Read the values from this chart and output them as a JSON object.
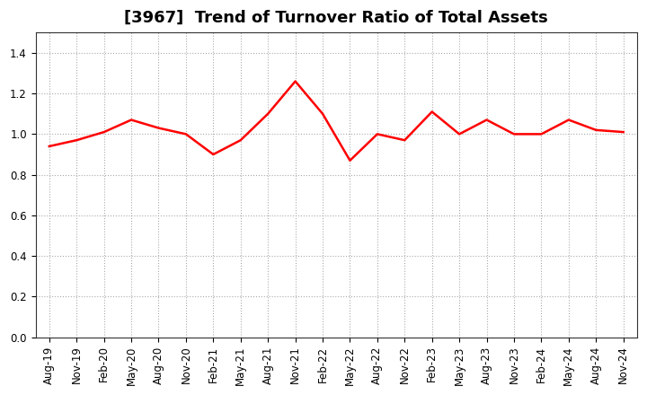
{
  "title": "[3967]  Trend of Turnover Ratio of Total Assets",
  "x_labels": [
    "Aug-19",
    "Nov-19",
    "Feb-20",
    "May-20",
    "Aug-20",
    "Nov-20",
    "Feb-21",
    "May-21",
    "Aug-21",
    "Nov-21",
    "Feb-22",
    "May-22",
    "Aug-22",
    "Nov-22",
    "Feb-23",
    "May-23",
    "Aug-23",
    "Nov-23",
    "Feb-24",
    "May-24",
    "Aug-24",
    "Nov-24"
  ],
  "values": [
    0.94,
    0.97,
    1.01,
    1.07,
    1.03,
    1.0,
    0.9,
    0.97,
    1.1,
    1.26,
    1.1,
    0.87,
    1.0,
    0.97,
    1.11,
    1.0,
    1.07,
    1.0,
    1.0,
    1.07,
    1.02,
    1.01
  ],
  "line_color": "#FF0000",
  "line_width": 1.8,
  "background_color": "#FFFFFF",
  "plot_bg_color": "#FFFFFF",
  "grid_color": "#AAAAAA",
  "ylim": [
    0.0,
    1.5
  ],
  "yticks": [
    0.0,
    0.2,
    0.4,
    0.6,
    0.8,
    1.0,
    1.2,
    1.4
  ],
  "title_fontsize": 13,
  "tick_fontsize": 8.5
}
